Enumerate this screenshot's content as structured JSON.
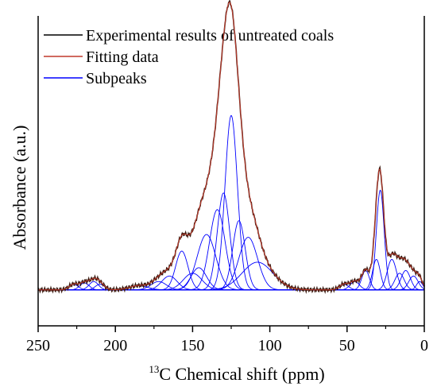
{
  "chart_data": {
    "type": "line",
    "title": "",
    "xlabel_sup": "13",
    "xlabel": "C Chemical shift (ppm)",
    "ylabel": "Absorbance (a.u.)",
    "xlim": [
      250,
      0
    ],
    "x_reversed": true,
    "ylim": [
      -0.12,
      1.0
    ],
    "x_ticks": [
      250,
      200,
      150,
      100,
      50,
      0
    ],
    "x_tick_labels": [
      "250",
      "200",
      "150",
      "100",
      "50",
      "0"
    ],
    "y_ticks_shown": false,
    "grid": false,
    "legend": {
      "placement": "top-left",
      "entries": [
        {
          "label": "Experimental results of untreated coals",
          "color": "#000000"
        },
        {
          "label": "Fitting data",
          "color": "#c0392b"
        },
        {
          "label": "Subpeaks",
          "color": "#0000ff"
        }
      ]
    },
    "colors": {
      "experimental": "#3a1a10",
      "fitting": "#c0392b",
      "subpeaks": "#0000ff"
    },
    "baseline": 0.01,
    "subpeaks": [
      {
        "center": 227,
        "height": 0.02,
        "width": 3
      },
      {
        "center": 220,
        "height": 0.025,
        "width": 3
      },
      {
        "center": 214,
        "height": 0.03,
        "width": 3
      },
      {
        "center": 210,
        "height": 0.02,
        "width": 3
      },
      {
        "center": 185,
        "height": 0.015,
        "width": 6
      },
      {
        "center": 172,
        "height": 0.03,
        "width": 5
      },
      {
        "center": 165,
        "height": 0.05,
        "width": 5
      },
      {
        "center": 157,
        "height": 0.14,
        "width": 4
      },
      {
        "center": 150,
        "height": 0.06,
        "width": 6
      },
      {
        "center": 146,
        "height": 0.08,
        "width": 5
      },
      {
        "center": 141,
        "height": 0.2,
        "width": 6
      },
      {
        "center": 134,
        "height": 0.29,
        "width": 5
      },
      {
        "center": 130,
        "height": 0.35,
        "width": 4
      },
      {
        "center": 125,
        "height": 0.63,
        "width": 4
      },
      {
        "center": 120,
        "height": 0.25,
        "width": 4
      },
      {
        "center": 114,
        "height": 0.19,
        "width": 6
      },
      {
        "center": 108,
        "height": 0.1,
        "width": 10
      },
      {
        "center": 52,
        "height": 0.02,
        "width": 3
      },
      {
        "center": 45,
        "height": 0.03,
        "width": 3
      },
      {
        "center": 38,
        "height": 0.07,
        "width": 2.5
      },
      {
        "center": 31,
        "height": 0.11,
        "width": 2.5
      },
      {
        "center": 28.5,
        "height": 0.36,
        "width": 2.5
      },
      {
        "center": 21,
        "height": 0.11,
        "width": 3
      },
      {
        "center": 16,
        "height": 0.06,
        "width": 3
      },
      {
        "center": 12,
        "height": 0.07,
        "width": 3
      },
      {
        "center": 7,
        "height": 0.05,
        "width": 3
      },
      {
        "center": 3,
        "height": 0.03,
        "width": 2
      }
    ]
  }
}
